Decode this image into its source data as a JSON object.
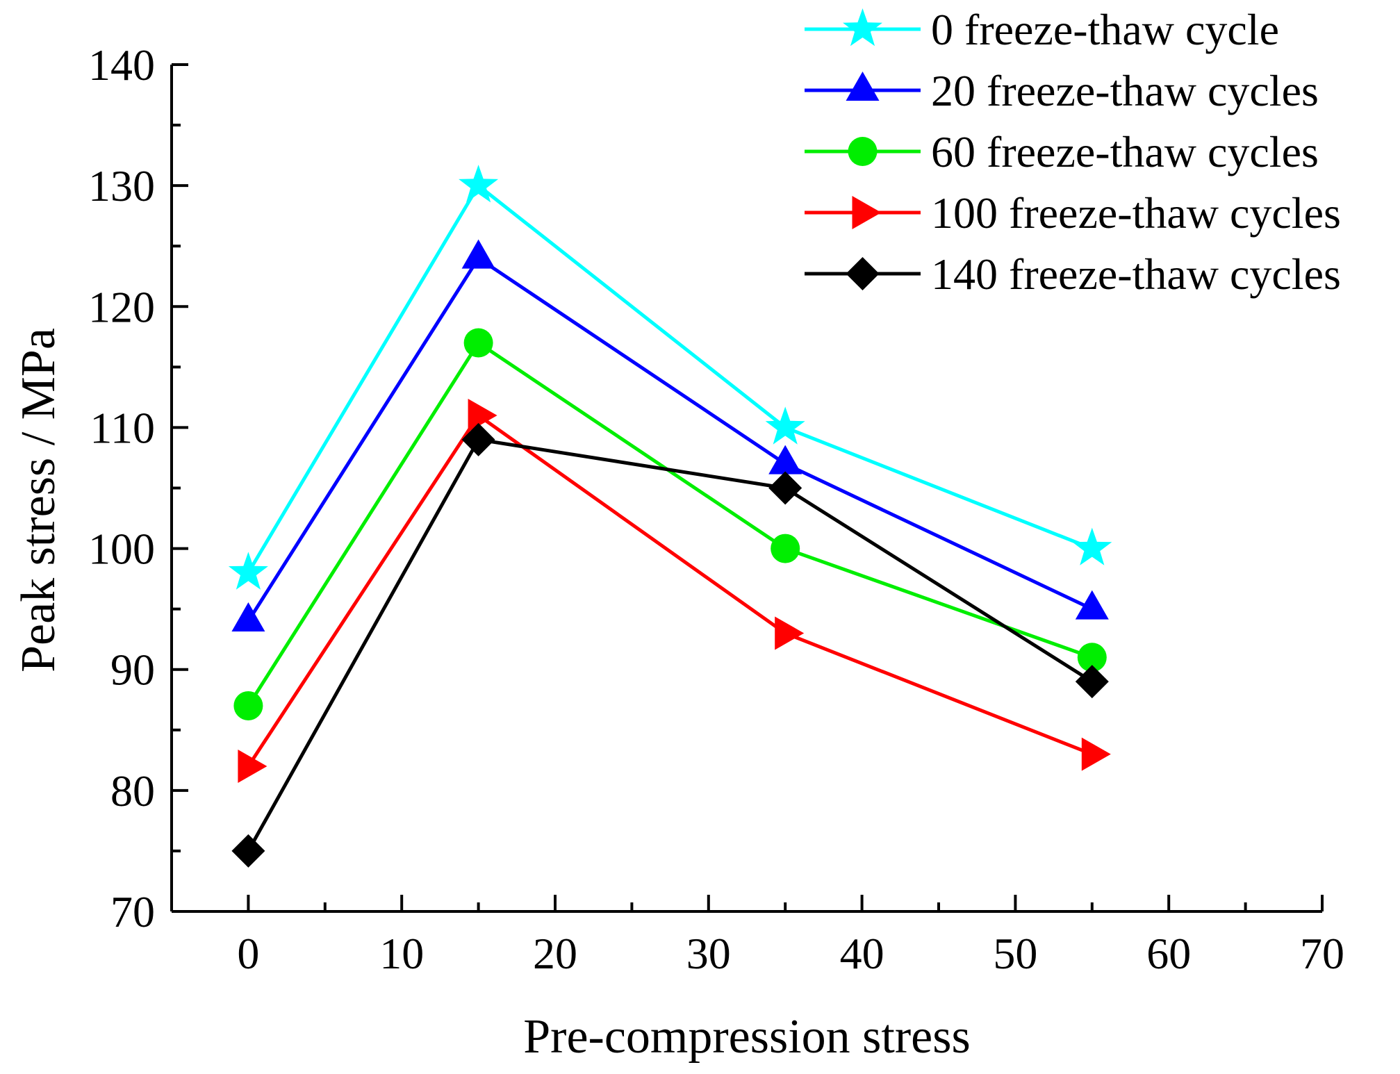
{
  "chart_data": {
    "type": "line",
    "title": "",
    "xlabel": "Pre-compression stress",
    "ylabel": "Peak stress / MPa",
    "xlim": [
      -5,
      70
    ],
    "ylim": [
      70,
      140
    ],
    "x_ticks": [
      0,
      10,
      20,
      30,
      40,
      50,
      60,
      70
    ],
    "y_ticks": [
      70,
      80,
      90,
      100,
      110,
      120,
      130,
      140
    ],
    "x": [
      0,
      15,
      35,
      55
    ],
    "legend_position": "top-right",
    "grid": false,
    "series": [
      {
        "name": "0 freeze-thaw cycle",
        "values": [
          98,
          130,
          110,
          100
        ],
        "color": "#00FFFF",
        "marker": "star"
      },
      {
        "name": "20 freeze-thaw cycles",
        "values": [
          94,
          124,
          107,
          95
        ],
        "color": "#0000FF",
        "marker": "triangle-up"
      },
      {
        "name": "60 freeze-thaw cycles",
        "values": [
          87,
          117,
          100,
          91
        ],
        "color": "#00EE00",
        "marker": "circle"
      },
      {
        "name": "100 freeze-thaw cycles",
        "values": [
          82,
          111,
          93,
          83
        ],
        "color": "#FF0000",
        "marker": "triangle-right"
      },
      {
        "name": "140 freeze-thaw cycles",
        "values": [
          75,
          109,
          105,
          89
        ],
        "color": "#000000",
        "marker": "diamond"
      }
    ]
  }
}
